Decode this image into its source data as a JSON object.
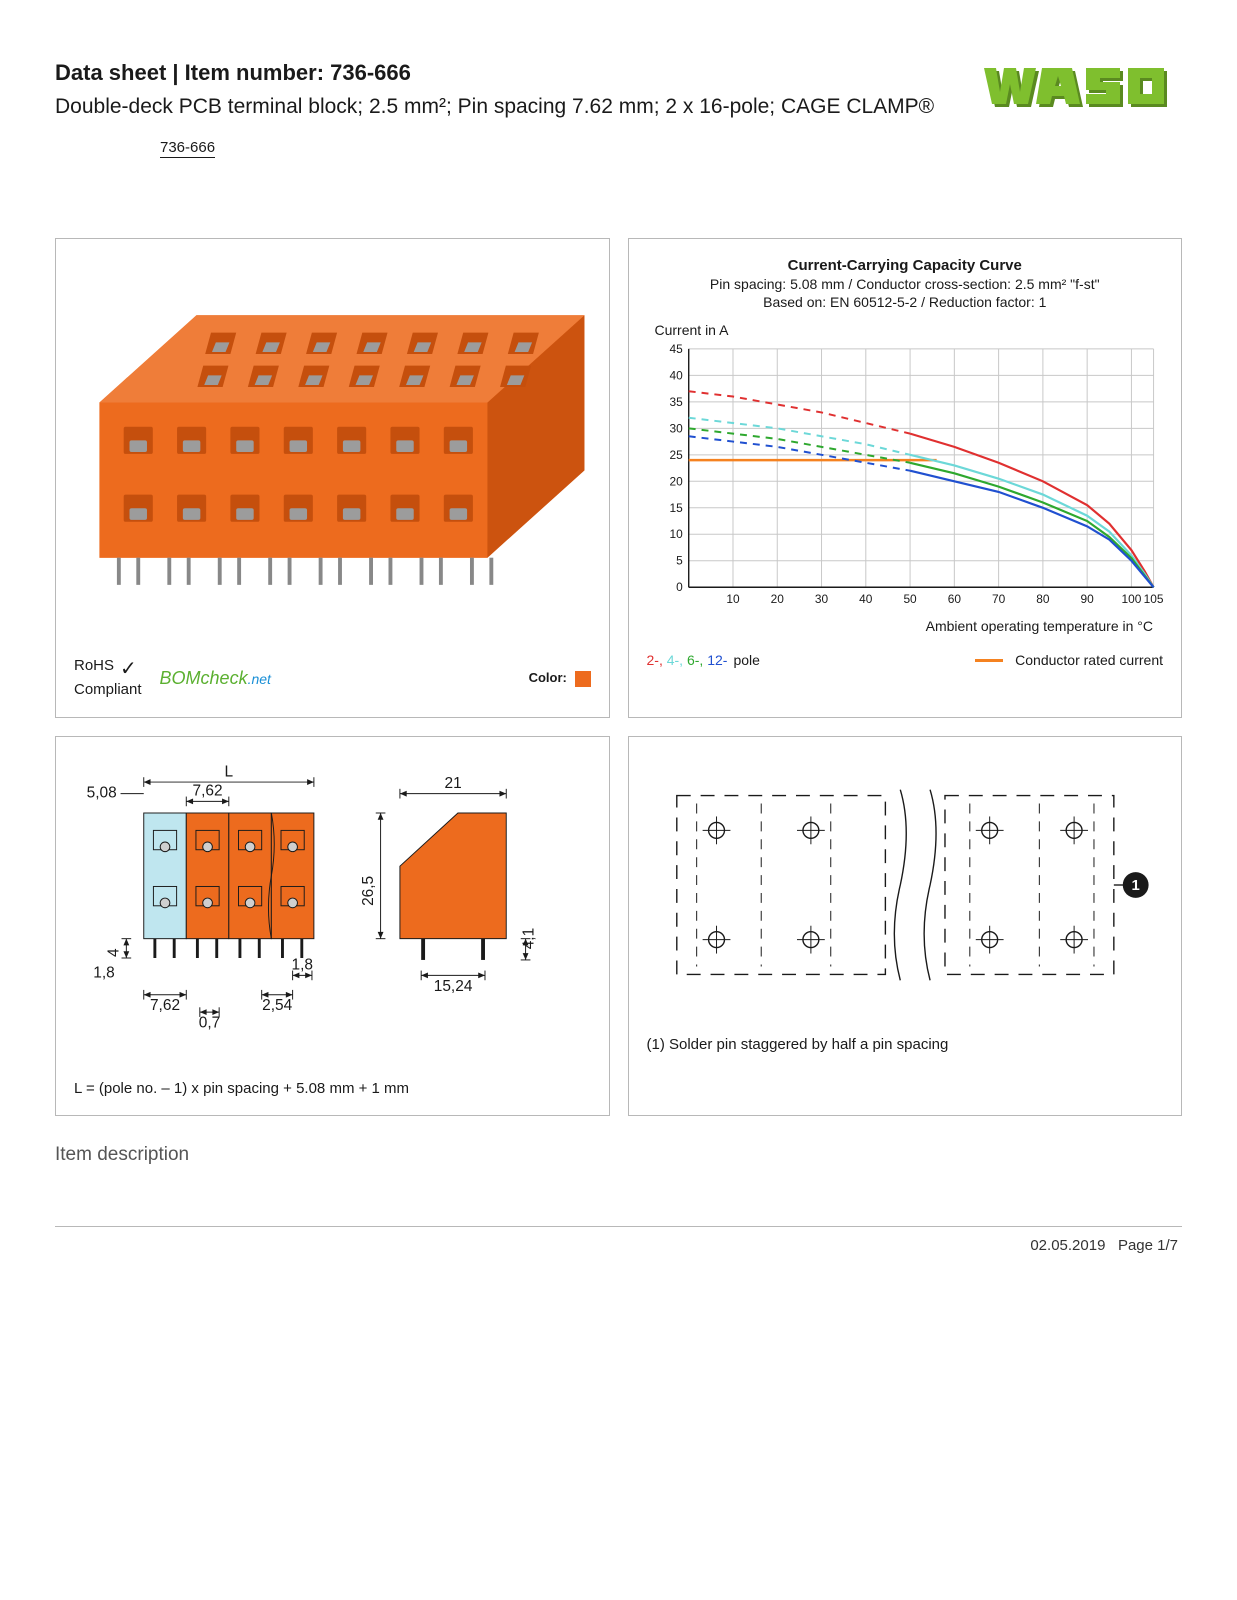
{
  "header": {
    "title_prefix": "Data sheet",
    "title_sep": "  |  ",
    "title_item": "Item number: 736-666",
    "subtitle": "Double-deck PCB terminal block; 2.5 mm²; Pin spacing 7.62 mm; 2 x 16-pole; CAGE CLAMP®",
    "item_small": "736-666"
  },
  "logo": {
    "brand": "WAGO",
    "fill": "#7fbf2e",
    "shadow": "#5a8a20"
  },
  "photo_panel": {
    "block_color": "#ed6b1e",
    "block_shadow": "#c54f0d",
    "slot_color": "#9c9c9c",
    "rohs_line1": "RoHS",
    "rohs_line2": "Compliant",
    "bom_text": "BOM",
    "bom_check": "check",
    "bom_net": ".net",
    "color_label": "Color:",
    "color_swatch": "#ed6b1e"
  },
  "chart": {
    "title": "Current-Carrying Capacity Curve",
    "sub1": "Pin spacing: 5.08 mm / Conductor cross-section: 2.5 mm² \"f-st\"",
    "sub2": "Based on: EN 60512-5-2 / Reduction factor: 1",
    "y_axis_label": "Current in A",
    "x_axis_label": "Ambient operating temperature in °C",
    "y_ticks": [
      0,
      5,
      10,
      15,
      20,
      25,
      30,
      35,
      40,
      45
    ],
    "x_ticks": [
      10,
      20,
      30,
      40,
      50,
      60,
      70,
      80,
      90,
      100,
      105
    ],
    "x_min": 0,
    "x_max": 105,
    "y_min": 0,
    "y_max": 45,
    "grid_color": "#c8c8c8",
    "axis_color": "#1a1a1a",
    "conductor_rated": {
      "color": "#f58220",
      "points": [
        [
          0,
          24
        ],
        [
          56,
          24
        ]
      ]
    },
    "series": [
      {
        "name": "2-pole",
        "color": "#e03030",
        "dashed_pts": [
          [
            0,
            37
          ],
          [
            10,
            36
          ],
          [
            20,
            34.5
          ],
          [
            30,
            33
          ],
          [
            40,
            31
          ],
          [
            50,
            29
          ]
        ],
        "solid_pts": [
          [
            50,
            29
          ],
          [
            60,
            26.5
          ],
          [
            70,
            23.5
          ],
          [
            80,
            20
          ],
          [
            90,
            15.5
          ],
          [
            95,
            12
          ],
          [
            100,
            7
          ],
          [
            103,
            3
          ],
          [
            105,
            0
          ]
        ]
      },
      {
        "name": "4-pole",
        "color": "#6cd8d8",
        "dashed_pts": [
          [
            0,
            32
          ],
          [
            10,
            31
          ],
          [
            20,
            30
          ],
          [
            30,
            28.5
          ],
          [
            40,
            27
          ],
          [
            50,
            25
          ]
        ],
        "solid_pts": [
          [
            50,
            25
          ],
          [
            60,
            23
          ],
          [
            70,
            20.5
          ],
          [
            80,
            17.5
          ],
          [
            90,
            13.5
          ],
          [
            95,
            10.5
          ],
          [
            100,
            6
          ],
          [
            103,
            2.5
          ],
          [
            105,
            0
          ]
        ]
      },
      {
        "name": "6-pole",
        "color": "#2ea82e",
        "dashed_pts": [
          [
            0,
            30
          ],
          [
            10,
            29
          ],
          [
            20,
            28
          ],
          [
            30,
            26.5
          ],
          [
            40,
            25
          ],
          [
            50,
            23.5
          ]
        ],
        "solid_pts": [
          [
            50,
            23.5
          ],
          [
            60,
            21.5
          ],
          [
            70,
            19
          ],
          [
            80,
            16
          ],
          [
            90,
            12.5
          ],
          [
            95,
            9.5
          ],
          [
            100,
            5.5
          ],
          [
            103,
            2.2
          ],
          [
            105,
            0
          ]
        ]
      },
      {
        "name": "12-pole",
        "color": "#2050d0",
        "dashed_pts": [
          [
            0,
            28.5
          ],
          [
            10,
            27.5
          ],
          [
            20,
            26.5
          ],
          [
            30,
            25
          ],
          [
            40,
            23.5
          ],
          [
            50,
            22
          ]
        ],
        "solid_pts": [
          [
            50,
            22
          ],
          [
            60,
            20
          ],
          [
            70,
            18
          ],
          [
            80,
            15
          ],
          [
            90,
            11.5
          ],
          [
            95,
            9
          ],
          [
            100,
            5
          ],
          [
            103,
            2
          ],
          [
            105,
            0
          ]
        ]
      }
    ],
    "legend_poles": [
      {
        "label": "2-,",
        "color": "#e03030"
      },
      {
        "label": "4-,",
        "color": "#6cd8d8"
      },
      {
        "label": "6-,",
        "color": "#2ea82e"
      },
      {
        "label": "12-",
        "color": "#2050d0"
      }
    ],
    "legend_pole_word": "pole",
    "legend_conductor": "Conductor rated current"
  },
  "dims_panel": {
    "block_color": "#ed6b1e",
    "ghost_color": "#bfe6ef",
    "line_color": "#1a1a1a",
    "labels": {
      "L": "L",
      "d5_08": "5,08",
      "d7_62a": "7,62",
      "d7_62b": "7,62",
      "d1_8a": "1,8",
      "d1_8b": "1,8",
      "d0_7": "0,7",
      "d2_54": "2,54",
      "d4": "4",
      "d26_5": "26,5",
      "d21": "21",
      "d15_24": "15,24",
      "d4_1": "4,1"
    },
    "footer": "L = (pole no. – 1) x pin spacing + 5.08 mm + 1 mm"
  },
  "footprint_panel": {
    "note": "(1) Solder pin staggered by half a pin spacing",
    "badge": "1",
    "line_color": "#1a1a1a"
  },
  "section_title": "Item description",
  "footer": {
    "date": "02.05.2019",
    "page": "Page 1/7"
  }
}
